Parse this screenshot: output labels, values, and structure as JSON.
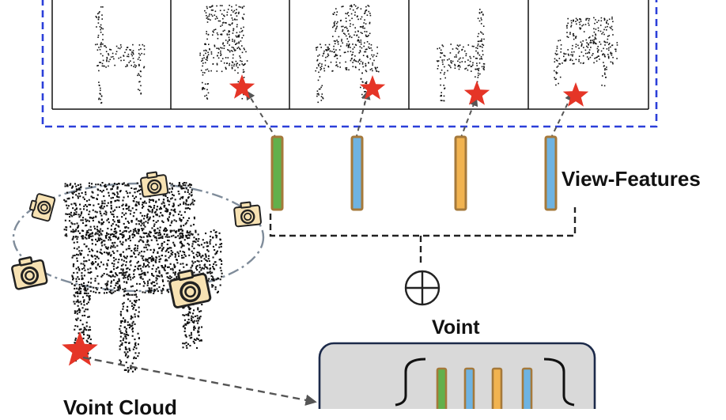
{
  "labels": {
    "view_features": "View-Features",
    "voint": "Voint",
    "voint_cloud": "Voint Cloud"
  },
  "colors": {
    "dashed_box": "#2b3fd9",
    "star": "#e53527",
    "feature_green": "#62b04b",
    "feature_blue": "#6eb3e2",
    "feature_orange": "#f1b350",
    "feature_border": "#a5793b",
    "camera_fill": "#f7e2b3",
    "voint_box_fill": "#d9d9d9",
    "voint_box_border": "#1c2a4a",
    "orbit_line": "#7f8c9a"
  },
  "views": [
    {
      "pose": "side"
    },
    {
      "pose": "front-left"
    },
    {
      "pose": "front-right"
    },
    {
      "pose": "side-right"
    },
    {
      "pose": "top-front"
    }
  ],
  "view_features": [
    {
      "color": "green"
    },
    {
      "color": "blue"
    },
    {
      "color": "orange"
    },
    {
      "color": "blue"
    }
  ],
  "aggregation_icon": "circled-plus-icon",
  "camera_icon": "camera-icon",
  "star_icon": "star-icon"
}
